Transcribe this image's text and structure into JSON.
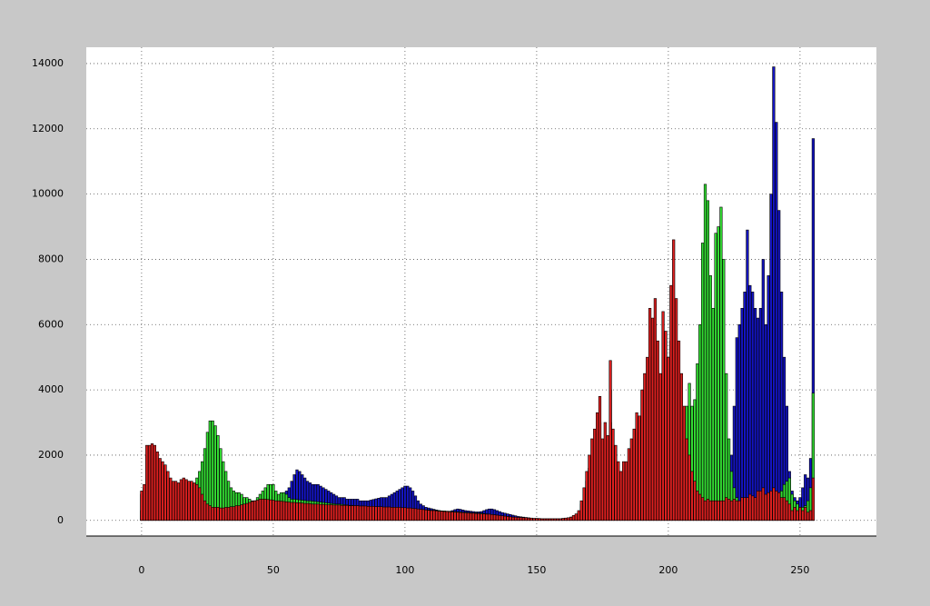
{
  "chart_data": {
    "type": "histogram",
    "x": [
      0,
      1,
      2,
      3,
      4,
      5,
      6,
      7,
      8,
      9,
      10,
      11,
      12,
      13,
      14,
      15,
      16,
      17,
      18,
      19,
      20,
      21,
      22,
      23,
      24,
      25,
      26,
      27,
      28,
      29,
      30,
      31,
      32,
      33,
      34,
      35,
      36,
      37,
      38,
      39,
      40,
      41,
      42,
      43,
      44,
      45,
      46,
      47,
      48,
      49,
      50,
      51,
      52,
      53,
      54,
      55,
      56,
      57,
      58,
      59,
      60,
      61,
      62,
      63,
      64,
      65,
      66,
      67,
      68,
      69,
      70,
      71,
      72,
      73,
      74,
      75,
      76,
      77,
      78,
      79,
      80,
      81,
      82,
      83,
      84,
      85,
      86,
      87,
      88,
      89,
      90,
      91,
      92,
      93,
      94,
      95,
      96,
      97,
      98,
      99,
      100,
      101,
      102,
      103,
      104,
      105,
      106,
      107,
      108,
      109,
      110,
      111,
      112,
      113,
      114,
      115,
      116,
      117,
      118,
      119,
      120,
      121,
      122,
      123,
      124,
      125,
      126,
      127,
      128,
      129,
      130,
      131,
      132,
      133,
      134,
      135,
      136,
      137,
      138,
      139,
      140,
      141,
      142,
      143,
      144,
      145,
      146,
      147,
      148,
      149,
      150,
      151,
      152,
      153,
      154,
      155,
      156,
      157,
      158,
      159,
      160,
      161,
      162,
      163,
      164,
      165,
      166,
      167,
      168,
      169,
      170,
      171,
      172,
      173,
      174,
      175,
      176,
      177,
      178,
      179,
      180,
      181,
      182,
      183,
      184,
      185,
      186,
      187,
      188,
      189,
      190,
      191,
      192,
      193,
      194,
      195,
      196,
      197,
      198,
      199,
      200,
      201,
      202,
      203,
      204,
      205,
      206,
      207,
      208,
      209,
      210,
      211,
      212,
      213,
      214,
      215,
      216,
      217,
      218,
      219,
      220,
      221,
      222,
      223,
      224,
      225,
      226,
      227,
      228,
      229,
      230,
      231,
      232,
      233,
      234,
      235,
      236,
      237,
      238,
      239,
      240,
      241,
      242,
      243,
      244,
      245,
      246,
      247,
      248,
      249,
      250,
      251,
      252,
      253,
      254,
      255
    ],
    "series": [
      {
        "color": "#1414c4",
        "values": [
          300,
          350,
          400,
          400,
          400,
          400,
          400,
          400,
          400,
          400,
          400,
          400,
          400,
          400,
          400,
          400,
          400,
          400,
          400,
          400,
          400,
          400,
          400,
          400,
          400,
          400,
          400,
          400,
          400,
          400,
          400,
          400,
          400,
          400,
          420,
          440,
          460,
          480,
          500,
          520,
          540,
          560,
          580,
          600,
          620,
          640,
          660,
          680,
          700,
          720,
          740,
          760,
          780,
          800,
          850,
          900,
          1000,
          1200,
          1400,
          1550,
          1500,
          1400,
          1300,
          1200,
          1150,
          1100,
          1100,
          1100,
          1050,
          1000,
          950,
          900,
          850,
          800,
          750,
          700,
          700,
          700,
          650,
          650,
          650,
          650,
          650,
          600,
          600,
          600,
          600,
          620,
          640,
          660,
          680,
          700,
          700,
          700,
          750,
          800,
          850,
          900,
          950,
          1000,
          1050,
          1050,
          1000,
          900,
          750,
          600,
          500,
          450,
          400,
          380,
          360,
          340,
          320,
          300,
          290,
          280,
          280,
          270,
          300,
          330,
          350,
          340,
          320,
          300,
          290,
          280,
          270,
          260,
          260,
          270,
          300,
          330,
          350,
          350,
          330,
          300,
          270,
          240,
          220,
          200,
          180,
          160,
          140,
          120,
          110,
          100,
          90,
          80,
          70,
          60,
          60,
          50,
          50,
          50,
          50,
          50,
          50,
          50,
          50,
          50,
          60,
          70,
          80,
          100,
          130,
          170,
          250,
          450,
          700,
          1000,
          1300,
          1600,
          1800,
          2100,
          2400,
          1700,
          2000,
          1800,
          3000,
          1900,
          1600,
          1300,
          1100,
          1300,
          1300,
          1500,
          1700,
          1900,
          2200,
          2100,
          2600,
          3000,
          3300,
          4000,
          4000,
          4300,
          3500,
          3000,
          4000,
          3700,
          3200,
          4200,
          5000,
          4200,
          3500,
          2500,
          1800,
          1500,
          1300,
          1100,
          1000,
          900,
          800,
          700,
          600,
          550,
          500,
          500,
          500,
          550,
          600,
          700,
          800,
          1000,
          2000,
          3500,
          5600,
          6000,
          6500,
          7000,
          8900,
          7200,
          7000,
          6500,
          6200,
          6500,
          8000,
          6000,
          7500,
          10000,
          13900,
          12200,
          9500,
          7000,
          5000,
          3500,
          1500,
          900,
          700,
          600,
          700,
          1000,
          1400,
          1300,
          1900,
          11700
        ]
      },
      {
        "color": "#33dd33",
        "values": [
          800,
          1000,
          2000,
          2100,
          2100,
          2000,
          1900,
          1700,
          1600,
          1500,
          1300,
          1200,
          1100,
          1100,
          1050,
          1100,
          1150,
          1150,
          1100,
          1100,
          1100,
          1300,
          1500,
          1800,
          2200,
          2700,
          3050,
          3050,
          2900,
          2600,
          2200,
          1800,
          1500,
          1200,
          1000,
          900,
          850,
          850,
          800,
          700,
          700,
          650,
          600,
          600,
          700,
          800,
          900,
          1000,
          1100,
          1100,
          1100,
          900,
          800,
          850,
          850,
          800,
          700,
          650,
          650,
          640,
          630,
          620,
          610,
          600,
          600,
          590,
          580,
          570,
          560,
          550,
          540,
          530,
          520,
          510,
          500,
          500,
          490,
          480,
          470,
          460,
          460,
          450,
          450,
          440,
          440,
          430,
          430,
          420,
          420,
          410,
          410,
          400,
          400,
          400,
          390,
          390,
          380,
          380,
          370,
          370,
          360,
          360,
          350,
          350,
          340,
          340,
          330,
          330,
          320,
          320,
          310,
          310,
          300,
          300,
          290,
          290,
          280,
          280,
          270,
          270,
          260,
          260,
          250,
          250,
          240,
          240,
          230,
          230,
          220,
          220,
          210,
          200,
          190,
          180,
          170,
          160,
          150,
          140,
          130,
          120,
          110,
          100,
          90,
          80,
          80,
          70,
          70,
          60,
          60,
          50,
          50,
          50,
          40,
          40,
          40,
          40,
          40,
          40,
          40,
          40,
          50,
          60,
          70,
          80,
          120,
          160,
          250,
          500,
          800,
          1200,
          1600,
          2000,
          2300,
          2700,
          3000,
          2100,
          2500,
          2200,
          4000,
          2300,
          1900,
          1500,
          1300,
          1500,
          1500,
          1800,
          2000,
          2300,
          2700,
          2600,
          3200,
          3600,
          4000,
          5000,
          5000,
          5500,
          4500,
          3700,
          5000,
          4700,
          4000,
          5500,
          6500,
          5500,
          4500,
          2000,
          2500,
          3500,
          4200,
          3500,
          3700,
          4800,
          6000,
          8500,
          10300,
          9800,
          7500,
          6500,
          8800,
          9000,
          9600,
          8000,
          4500,
          2500,
          1500,
          1000,
          700,
          600,
          550,
          500,
          500,
          450,
          400,
          400,
          450,
          500,
          500,
          500,
          400,
          450,
          600,
          700,
          800,
          900,
          1100,
          1200,
          1300,
          800,
          600,
          500,
          400,
          400,
          450,
          600,
          1000,
          3900
        ]
      },
      {
        "color": "#dd2020",
        "values": [
          900,
          1100,
          2300,
          2300,
          2350,
          2300,
          2100,
          1900,
          1800,
          1700,
          1500,
          1300,
          1200,
          1200,
          1150,
          1250,
          1300,
          1250,
          1200,
          1200,
          1150,
          1100,
          1000,
          800,
          600,
          500,
          450,
          400,
          400,
          400,
          380,
          380,
          400,
          400,
          420,
          420,
          450,
          450,
          480,
          500,
          520,
          550,
          580,
          600,
          620,
          650,
          650,
          650,
          640,
          630,
          620,
          600,
          600,
          590,
          580,
          570,
          560,
          550,
          550,
          540,
          540,
          530,
          520,
          520,
          510,
          500,
          500,
          500,
          490,
          490,
          480,
          480,
          480,
          470,
          470,
          470,
          460,
          460,
          460,
          450,
          450,
          450,
          450,
          440,
          440,
          440,
          430,
          430,
          430,
          420,
          420,
          420,
          410,
          410,
          410,
          400,
          400,
          400,
          400,
          390,
          390,
          380,
          380,
          370,
          360,
          350,
          340,
          330,
          320,
          310,
          300,
          300,
          290,
          280,
          280,
          270,
          270,
          260,
          260,
          250,
          250,
          240,
          240,
          230,
          230,
          220,
          220,
          210,
          210,
          200,
          200,
          190,
          190,
          180,
          170,
          160,
          150,
          140,
          130,
          120,
          110,
          100,
          100,
          90,
          90,
          80,
          80,
          70,
          70,
          60,
          60,
          60,
          50,
          50,
          50,
          50,
          50,
          50,
          50,
          50,
          60,
          70,
          80,
          100,
          150,
          200,
          300,
          600,
          1000,
          1500,
          2000,
          2500,
          2800,
          3300,
          3800,
          2500,
          3000,
          2600,
          4900,
          2800,
          2300,
          1800,
          1500,
          1800,
          1800,
          2200,
          2500,
          2800,
          3300,
          3200,
          4000,
          4500,
          5000,
          6500,
          6200,
          6800,
          5500,
          4500,
          6400,
          5800,
          5000,
          7200,
          8600,
          6800,
          5500,
          4500,
          3500,
          2500,
          2000,
          1500,
          1200,
          900,
          800,
          700,
          600,
          650,
          600,
          600,
          600,
          600,
          600,
          600,
          700,
          650,
          600,
          650,
          600,
          600,
          700,
          700,
          700,
          800,
          750,
          700,
          900,
          900,
          1000,
          800,
          850,
          900,
          1000,
          900,
          850,
          700,
          700,
          600,
          500,
          300,
          400,
          300,
          400,
          300,
          400,
          250,
          300,
          1300
        ]
      }
    ],
    "xlim": [
      -21,
      279
    ],
    "ylim": [
      -480,
      14500
    ],
    "xticks": [
      0,
      50,
      100,
      150,
      200,
      250
    ],
    "yticks": [
      0,
      2000,
      4000,
      6000,
      8000,
      10000,
      12000,
      14000
    ],
    "grid": true
  }
}
